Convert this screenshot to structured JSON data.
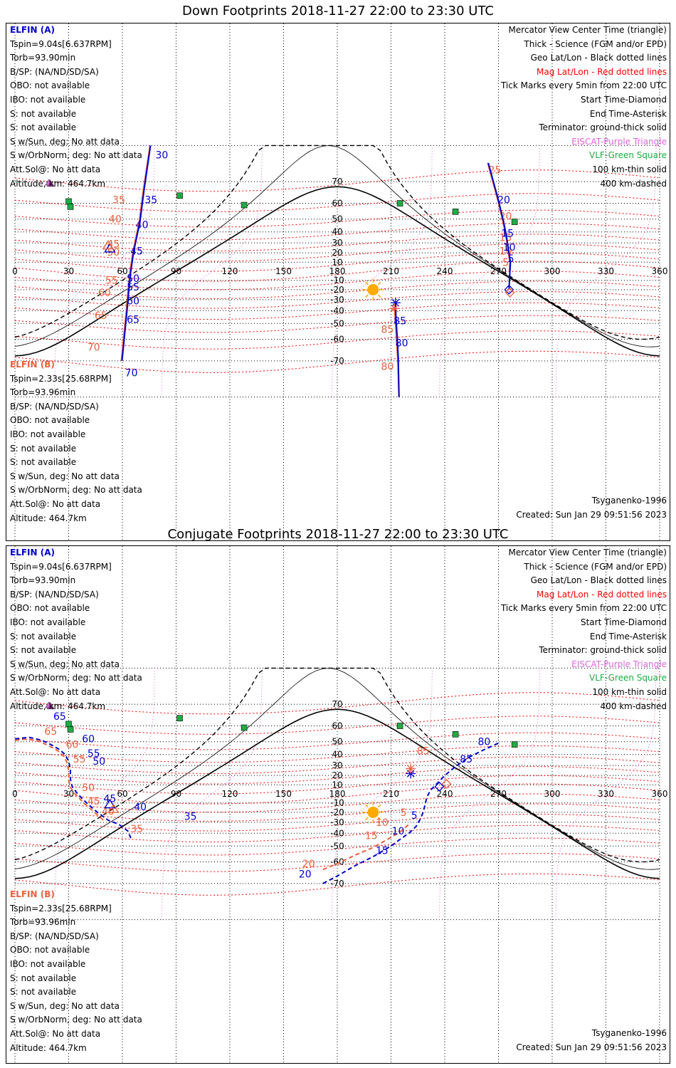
{
  "down": {
    "title": "Down Footprints 2018-11-27 22:00 to 23:30 UTC",
    "elfin_a": {
      "header": "ELFIN (A)",
      "lines": [
        "Tspin=9.04s[6.637RPM]",
        "Torb=93.90min",
        "B/SP: (NA/ND/SD/SA)",
        "OBO: not available",
        "IBO: not available",
        "S: not available",
        "S: not available",
        "S w/Sun, deg: No att data",
        "S w/OrbNorm, deg: No att data",
        "Att.Sol@: No att data",
        "Altitude, km: 464.7km"
      ]
    },
    "elfin_b": {
      "header": "ELFIN (B)",
      "lines": [
        "Tspin=2.33s[25.68RPM]",
        "Torb=93.96min",
        "B/SP: (NA/ND/SD/SA)",
        "OBO: not available",
        "IBO: not available",
        "S: not available",
        "S: not available",
        "S w/Sun, deg: No att data",
        "S w/OrbNorm, deg: No att data",
        "Att.Sol@: No att data",
        "Altitude: 464.7km"
      ]
    },
    "model": "Tsyganenko-1996",
    "created": "Created: Sun Jan 29 09:51:56 2023"
  },
  "conj": {
    "title": "Conjugate Footprints 2018-11-27 22:00 to 23:30 UTC",
    "elfin_a": {
      "header": "ELFIN (A)",
      "lines": [
        "Tspin=9.04s[6.637RPM]",
        "Torb=93.90min",
        "B/SP: (NA/ND/SD/SA)",
        "OBO: not available",
        "IBO: not available",
        "S: not available",
        "S: not available",
        "S w/Sun, deg: No att data",
        "S w/OrbNorm, deg: No att data",
        "Att.Sol@: No att data",
        "Altitude, km: 464.7km"
      ]
    },
    "elfin_b": {
      "header": "ELFIN (B)",
      "lines": [
        "Tspin=2.33s[25.68RPM]",
        "Torb=93.96min",
        "B/SP: (NA/ND/SD/SA)",
        "OBO: not available",
        "IBO: not available",
        "S: not available",
        "S: not available",
        "S w/Sun, deg: No att data",
        "S w/OrbNorm, deg: No att data",
        "Att.Sol@: No att data",
        "Altitude: 464.7km"
      ]
    },
    "model": "Tsyganenko-1996",
    "created": "Created: Sun Jan 29 09:51:56 2023"
  },
  "legend": [
    {
      "text": "Mercator View Center Time (triangle)",
      "color": "#000000"
    },
    {
      "text": "Thick - Science (FGM and/or EPD)",
      "color": "#000000"
    },
    {
      "text": "Geo Lat/Lon - Black dotted lines",
      "color": "#000000"
    },
    {
      "text": "Mag Lat/Lon - Red dotted lines",
      "color": "#ff0000"
    },
    {
      "text": "Tick Marks every 5min from 22:00 UTC",
      "color": "#000000"
    },
    {
      "text": "Start Time-Diamond",
      "color": "#000000"
    },
    {
      "text": "End Time-Asterisk",
      "color": "#000000"
    },
    {
      "text": "Terminator: ground-thick solid",
      "color": "#000000"
    },
    {
      "text": "EISCAT-Purple Triangle",
      "color": "#dd66dd"
    },
    {
      "text": "VLF-Green Square",
      "color": "#22aa44"
    },
    {
      "text": "100 km-thin solid",
      "color": "#000000"
    },
    {
      "text": "400 km-dashed",
      "color": "#000000"
    }
  ],
  "lon_labels": [
    "0",
    "30",
    "60",
    "90",
    "120",
    "150",
    "180",
    "210",
    "240",
    "270",
    "300",
    "330",
    "360"
  ],
  "lat_labels": [
    "70",
    "60",
    "50",
    "40",
    "30",
    "20",
    "10",
    "-10",
    "-20",
    "-30",
    "-40",
    "-50",
    "-60",
    "-70"
  ],
  "colors": {
    "elfin_a": "#0000cc",
    "elfin_b": "#e8603c",
    "mag_grid": "#ff0000",
    "geo_grid": "#000000",
    "sun": "#ffaa00",
    "vlf": "#22aa44",
    "eiscat": "#dd66dd"
  },
  "down_tracks": {
    "a_west": {
      "points": [
        [
          75.7,
          80
        ],
        [
          72.0,
          66
        ],
        [
          69.8,
          48
        ],
        [
          67.3,
          30
        ],
        [
          66.2,
          20
        ],
        [
          64.7,
          0
        ],
        [
          63.6,
          -20
        ],
        [
          62.6,
          -40
        ],
        [
          59.8,
          -70
        ]
      ],
      "ticks": [
        [
          "30",
          82,
          78
        ],
        [
          "35",
          76,
          62
        ],
        [
          "40",
          71,
          46
        ],
        [
          "45",
          68,
          22
        ],
        [
          "50",
          66,
          -8
        ],
        [
          "55",
          66,
          -17
        ],
        [
          "60",
          66,
          -31
        ],
        [
          "65",
          66,
          -47
        ],
        [
          "70",
          65,
          -74
        ]
      ]
    },
    "b_west": {
      "points": [
        [
          75.4,
          80
        ],
        [
          71.6,
          66
        ],
        [
          69.4,
          48
        ],
        [
          66.9,
          30
        ],
        [
          65.8,
          20
        ],
        [
          64.3,
          0
        ],
        [
          63.2,
          -20
        ],
        [
          62.2,
          -40
        ],
        [
          59.4,
          -70
        ]
      ],
      "ticks": [
        [
          "35",
          58,
          62
        ],
        [
          "40",
          56,
          50
        ],
        [
          "45",
          55,
          29
        ],
        [
          "50",
          55,
          21
        ],
        [
          "55",
          54,
          -10
        ],
        [
          "60",
          50,
          -23
        ],
        [
          "65",
          48,
          -44
        ],
        [
          "70",
          44,
          -64
        ]
      ]
    },
    "a_east": {
      "points": [
        [
          264.3,
          76
        ],
        [
          269.6,
          63
        ],
        [
          272.7,
          49
        ],
        [
          274.4,
          37
        ],
        [
          275.4,
          26
        ],
        [
          276.2,
          16
        ],
        [
          276.7,
          10
        ],
        [
          276.4,
          0
        ],
        [
          275.9,
          -20
        ]
      ],
      "ticks": [
        [
          "20",
          273,
          62
        ],
        [
          "15",
          275,
          39
        ],
        [
          "10",
          276,
          26
        ],
        [
          "5",
          277,
          14
        ]
      ],
      "start": [
        275.9,
        -20
      ]
    },
    "b_east": {
      "points": [
        [
          264.0,
          76
        ],
        [
          269.3,
          63
        ],
        [
          272.4,
          49
        ],
        [
          274.1,
          37
        ],
        [
          275.1,
          26
        ],
        [
          275.9,
          16
        ],
        [
          276.4,
          10
        ],
        [
          276.1,
          0
        ]
      ],
      "ticks": [
        [
          "25",
          268,
          74
        ],
        [
          "20",
          274,
          52
        ],
        [
          "15",
          274,
          35
        ],
        [
          "10",
          274,
          22
        ],
        [
          "5",
          274,
          10
        ]
      ],
      "start": [
        276.4,
        -23
      ]
    },
    "a_south": {
      "points": [
        [
          212.5,
          -33
        ],
        [
          212.8,
          -46
        ],
        [
          213.4,
          -58
        ],
        [
          214.0,
          -68
        ],
        [
          214.5,
          -80
        ]
      ],
      "ticks": [
        [
          "85",
          215,
          -48
        ],
        [
          "80",
          216,
          -62
        ]
      ],
      "end": [
        212.5,
        -33
      ]
    },
    "b_south": {
      "points": [
        [
          212.0,
          -38
        ],
        [
          212.5,
          -50
        ],
        [
          213.1,
          -61
        ],
        [
          213.8,
          -70
        ],
        [
          214.4,
          -80
        ]
      ],
      "ticks": [
        [
          "85",
          208,
          -54
        ],
        [
          "80",
          208,
          -72
        ]
      ],
      "end": [
        212.0,
        -38
      ]
    }
  },
  "conj_tracks": {
    "a_west": {
      "points": [
        [
          0,
          52
        ],
        [
          8,
          53
        ],
        [
          15,
          51
        ],
        [
          20,
          48
        ],
        [
          25,
          44
        ],
        [
          28,
          40
        ],
        [
          30,
          34
        ],
        [
          31,
          26
        ],
        [
          31,
          16
        ],
        [
          32,
          8
        ],
        [
          35,
          0
        ],
        [
          40,
          -10
        ],
        [
          46,
          -20
        ],
        [
          52,
          -28
        ],
        [
          58,
          -32
        ],
        [
          63,
          -38
        ],
        [
          65,
          -45
        ]
      ],
      "ticks": [
        [
          "65",
          25,
          65
        ],
        [
          "60",
          41,
          52
        ],
        [
          "55",
          44,
          41
        ],
        [
          "50",
          47,
          34
        ],
        [
          "45",
          53,
          -5
        ],
        [
          "40",
          70,
          -14
        ],
        [
          "35",
          98,
          -24
        ]
      ]
    },
    "b_west": {
      "points": [
        [
          0,
          51
        ],
        [
          7,
          52
        ],
        [
          14,
          50
        ],
        [
          19,
          47
        ],
        [
          24,
          43
        ],
        [
          27,
          39
        ],
        [
          29,
          33
        ],
        [
          30,
          25
        ],
        [
          30,
          15
        ],
        [
          31,
          7
        ],
        [
          34,
          -1
        ],
        [
          39,
          -11
        ],
        [
          45,
          -21
        ],
        [
          50,
          -29
        ]
      ],
      "ticks": [
        [
          "65",
          20,
          57
        ],
        [
          "60",
          32,
          48
        ],
        [
          "55",
          36,
          36
        ],
        [
          "50",
          41,
          7
        ],
        [
          "45",
          44,
          -8
        ],
        [
          "40",
          52,
          -19
        ],
        [
          "35",
          68,
          -36
        ]
      ]
    },
    "a_east": {
      "points": [
        [
          172,
          -70
        ],
        [
          180,
          -67
        ],
        [
          190,
          -62
        ],
        [
          200,
          -57
        ],
        [
          210,
          -50
        ],
        [
          216,
          -44
        ],
        [
          220,
          -40
        ],
        [
          224,
          -34
        ],
        [
          226,
          -28
        ],
        [
          228,
          -20
        ],
        [
          229,
          -12
        ],
        [
          230,
          -4
        ],
        [
          232,
          4
        ],
        [
          236,
          12
        ],
        [
          240,
          20
        ],
        [
          246,
          29
        ],
        [
          254,
          38
        ],
        [
          262,
          44
        ],
        [
          270,
          49
        ]
      ],
      "ticks": [
        [
          "20",
          162,
          -66
        ],
        [
          "15",
          205,
          -53
        ],
        [
          "10",
          214,
          -38
        ],
        [
          "5",
          223,
          -23
        ],
        [
          "85",
          252,
          36
        ],
        [
          "80",
          262,
          50
        ]
      ],
      "start": [
        237,
        8
      ]
    },
    "b_east": {
      "points": [
        [
          172,
          -64
        ],
        [
          180,
          -61
        ],
        [
          190,
          -56
        ],
        [
          200,
          -51
        ],
        [
          208,
          -45
        ],
        [
          215,
          -39
        ],
        [
          220,
          -32
        ]
      ],
      "ticks": [
        [
          "20",
          164,
          -61
        ],
        [
          "15",
          199,
          -42
        ],
        [
          "10",
          205,
          -30
        ],
        [
          "5",
          217,
          -20
        ],
        [
          "85",
          228,
          43
        ]
      ],
      "start": [
        241,
        11
      ]
    },
    "end_a": [
      221,
      22
    ],
    "end_b": [
      221,
      27
    ]
  }
}
